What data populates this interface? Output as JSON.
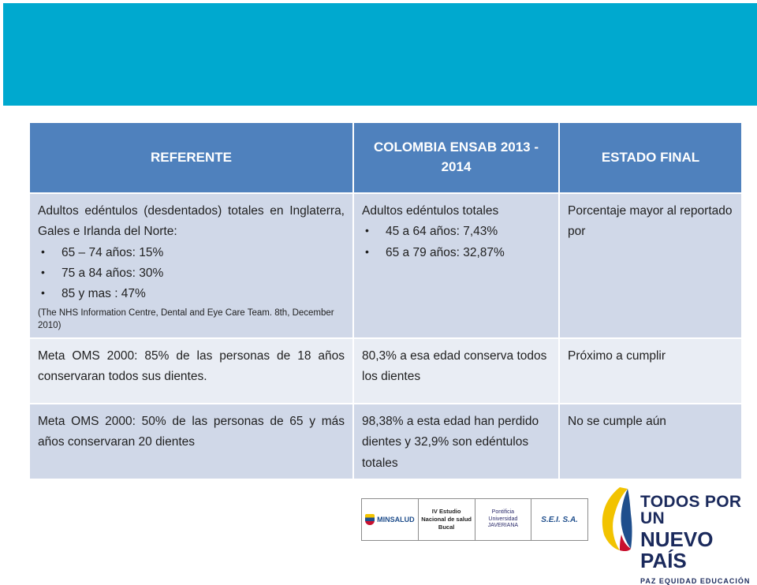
{
  "table": {
    "headers": [
      "REFERENTE",
      "COLOMBIA ENSAB 2013 - 2014",
      "ESTADO FINAL"
    ],
    "row1": {
      "referente_intro": "Adultos edéntulos (desdentados) totales en Inglaterra, Gales e Irlanda del Norte:",
      "referente_bullets": [
        "65 – 74 años: 15%",
        "75 a 84 años: 30%",
        "85 y mas : 47%"
      ],
      "referente_source": "(The NHS Information Centre, Dental and Eye Care Team. 8th, December 2010)",
      "colombia_intro": "Adultos edéntulos totales",
      "colombia_bullets": [
        "45 a 64 años: 7,43%",
        "65 a 79 años: 32,87%"
      ],
      "estado": "Porcentaje mayor al reportado por"
    },
    "row2": {
      "referente": "Meta OMS 2000: 85% de las personas de 18 años conservaran todos sus dientes.",
      "colombia": "80,3% a esa edad conserva todos los dientes",
      "estado": "Próximo a cumplir"
    },
    "row3": {
      "referente": "Meta OMS 2000: 50% de las personas de 65 y más años conservaran 20 dientes",
      "colombia": "98,38% a esta edad han perdido dientes y 32,9% son edéntulos totales",
      "estado": "No se cumple aún"
    }
  },
  "logos": {
    "minsalud": "MINSALUD",
    "estudio": "IV Estudio Nacional de salud Bucal",
    "javeriana": "Pontificia Universidad JAVERIANA",
    "sei": "S.E.I. S.A."
  },
  "gov": {
    "line1": "TODOS POR UN",
    "line2": "NUEVO PAÍS",
    "line3": "PAZ  EQUIDAD  EDUCACIÓN"
  },
  "colors": {
    "banner": "#00a9cf",
    "header": "#4f81bd",
    "row_dark": "#d0d8e8",
    "row_light": "#e9edf4"
  }
}
